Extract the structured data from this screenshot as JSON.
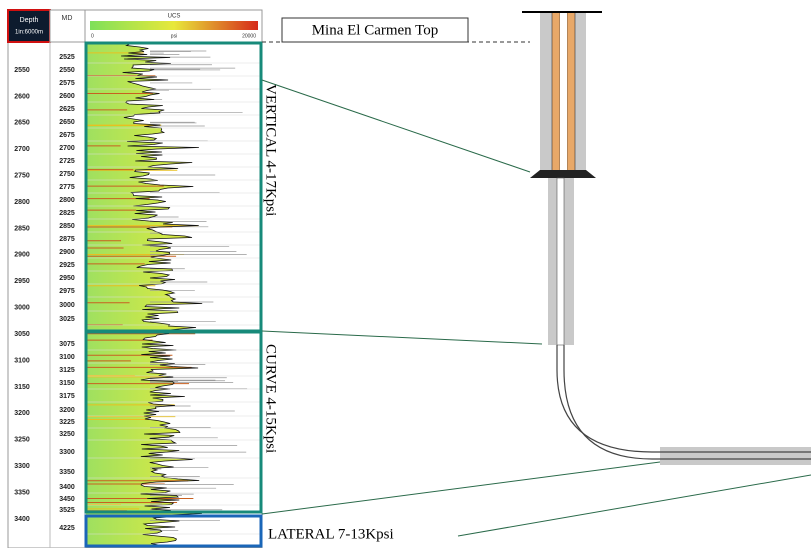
{
  "header": {
    "depth_title": "Depth",
    "depth_scale": "1in:6000m",
    "md_title": "MD",
    "ucs_title": "UCS",
    "ucs_min": 0,
    "ucs_unit": "psi",
    "ucs_max": 20000
  },
  "depth_ticks": [
    2550,
    2600,
    2650,
    2700,
    2750,
    2800,
    2850,
    2900,
    2950,
    3000,
    3050,
    3100,
    3150,
    3200,
    3250,
    3300,
    3350,
    3400
  ],
  "md_ticks": [
    2525,
    2550,
    2575,
    2600,
    2625,
    2650,
    2675,
    2700,
    2725,
    2750,
    2775,
    2800,
    2825,
    2850,
    2875,
    2900,
    2925,
    2950,
    2975,
    3000,
    3025,
    3075,
    3100,
    3125,
    3150,
    3175,
    3200,
    3225,
    3250,
    3300,
    3350,
    3400,
    3450,
    3525,
    4225
  ],
  "annotations": {
    "top": "Mina El Carmen Top",
    "vertical": "VERTICAL 4-17Kpsi",
    "curve": "CURVE 4-15Kpsi",
    "lateral": "LATERAL 7-13Kpsi"
  }
}
